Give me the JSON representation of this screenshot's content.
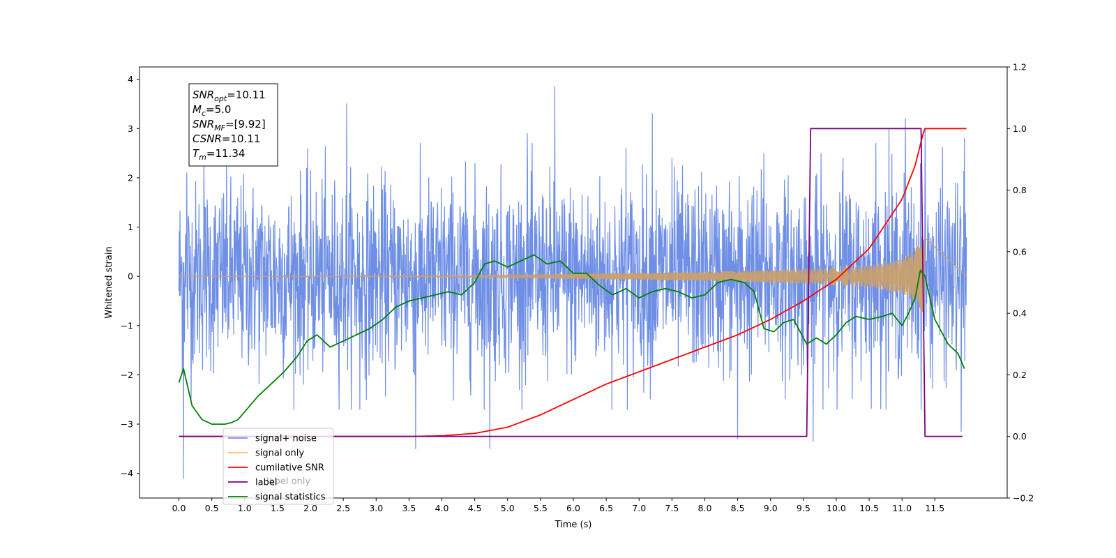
{
  "chart_data": {
    "type": "line",
    "xlabel": "Time (s)",
    "ylabel_left": "Whitened strain",
    "xlim": [
      -0.6,
      12.6
    ],
    "ylim_left": [
      -4.5,
      4.25
    ],
    "ylim_right": [
      -0.2,
      1.2
    ],
    "x_ticks": [
      0.0,
      0.5,
      1.0,
      1.5,
      2.0,
      2.5,
      3.0,
      3.5,
      4.0,
      4.5,
      5.0,
      5.5,
      6.0,
      6.5,
      7.0,
      7.5,
      8.0,
      8.5,
      9.0,
      9.5,
      10.0,
      10.5,
      11.0,
      11.5
    ],
    "x_tick_labels": [
      "0.0",
      "0.5",
      "1.0",
      "1.5",
      "2.0",
      "2.5",
      "3.0",
      "3.5",
      "4.0",
      "4.5",
      "5.0",
      "5.5",
      "6.0",
      "6.5",
      "7.0",
      "7.5",
      "8.0",
      "8.5",
      "9.0",
      "9.5",
      "10.0",
      "10.5",
      "11.0",
      "11.5"
    ],
    "y_left_ticks": [
      -4,
      -3,
      -2,
      -1,
      0,
      1,
      2,
      3,
      4
    ],
    "y_left_tick_labels": [
      "−4",
      "−3",
      "−2",
      "−1",
      "0",
      "1",
      "2",
      "3",
      "4"
    ],
    "y_right_ticks": [
      -0.2,
      0.0,
      0.2,
      0.4,
      0.6,
      0.8,
      1.0,
      1.2
    ],
    "y_right_tick_labels": [
      "−0.2",
      "0.0",
      "0.2",
      "0.4",
      "0.6",
      "0.8",
      "1.0",
      "1.2"
    ],
    "grid": false,
    "legend_position": "lower-left",
    "legend": [
      {
        "label": "signal+ noise",
        "color": "#6f8fe6"
      },
      {
        "label": "signal only",
        "color": "#ffbf66"
      },
      {
        "label": "cumilative SNR",
        "color": "#ff0000"
      },
      {
        "label": "label",
        "color": "#800080"
      },
      {
        "label": "signal statistics",
        "color": "#008000"
      }
    ],
    "legend_hidden_text": "label only",
    "info_box": [
      {
        "base": "SNR",
        "sub": "opt",
        "value": "=10.11"
      },
      {
        "base": "M",
        "sub": "c",
        "value": "=5.0"
      },
      {
        "base": "SNR",
        "sub": "MF",
        "value": "=[9.92]"
      },
      {
        "base": "CSNR",
        "sub": "",
        "value": "=10.11"
      },
      {
        "base": "T",
        "sub": "m",
        "value": "=11.34"
      }
    ],
    "series": [
      {
        "name": "signal+ noise",
        "axis": "left",
        "color": "#6f8fe6",
        "style": "noise",
        "x_range": [
          0.0,
          11.98
        ],
        "band_sd": 0.95,
        "spikes": [
          [
            0.07,
            -4.1
          ],
          [
            0.12,
            2.1
          ],
          [
            0.38,
            2.3
          ],
          [
            2.55,
            3.5
          ],
          [
            2.75,
            -2.7
          ],
          [
            3.6,
            -3.5
          ],
          [
            4.73,
            -3.5
          ],
          [
            5.3,
            2.9
          ],
          [
            5.72,
            3.85
          ],
          [
            6.8,
            2.6
          ],
          [
            7.2,
            3.3
          ],
          [
            7.5,
            2.4
          ],
          [
            8.5,
            -3.3
          ],
          [
            8.9,
            2.5
          ],
          [
            9.65,
            -3.35
          ],
          [
            10.1,
            2.4
          ],
          [
            10.6,
            2.7
          ],
          [
            10.8,
            3.0
          ],
          [
            11.05,
            3.2
          ],
          [
            11.35,
            3.0
          ],
          [
            11.9,
            -3.15
          ],
          [
            11.95,
            2.8
          ]
        ]
      },
      {
        "name": "signal only",
        "axis": "left",
        "color": "#c8a06e",
        "style": "chirp",
        "x_range": [
          0.0,
          11.34
        ],
        "envelope": [
          [
            0.0,
            0.0
          ],
          [
            4.5,
            0.02
          ],
          [
            6.0,
            0.05
          ],
          [
            8.0,
            0.09
          ],
          [
            9.5,
            0.15
          ],
          [
            10.5,
            0.22
          ],
          [
            11.0,
            0.35
          ],
          [
            11.2,
            0.55
          ],
          [
            11.34,
            0.85
          ]
        ]
      },
      {
        "name": "cumilative SNR",
        "axis": "right",
        "color": "#ff0000",
        "x": [
          0.0,
          3.5,
          4.0,
          4.5,
          5.0,
          5.5,
          6.0,
          6.5,
          7.0,
          7.5,
          8.0,
          8.5,
          9.0,
          9.5,
          10.0,
          10.5,
          11.0,
          11.2,
          11.34,
          11.98
        ],
        "y": [
          0.0,
          0.0,
          0.002,
          0.01,
          0.03,
          0.07,
          0.12,
          0.17,
          0.21,
          0.25,
          0.29,
          0.33,
          0.38,
          0.44,
          0.51,
          0.61,
          0.77,
          0.88,
          1.0,
          1.0
        ]
      },
      {
        "name": "label",
        "axis": "right",
        "color": "#800080",
        "x": [
          0.0,
          9.55,
          9.61,
          11.29,
          11.35,
          11.92
        ],
        "y": [
          0.0,
          0.0,
          1.0,
          1.0,
          0.0,
          0.0
        ]
      },
      {
        "name": "signal statistics",
        "axis": "right",
        "color": "#008000",
        "x": [
          0.0,
          0.07,
          0.2,
          0.35,
          0.5,
          0.7,
          0.8,
          0.9,
          1.0,
          1.2,
          1.4,
          1.6,
          1.8,
          1.95,
          2.1,
          2.3,
          2.5,
          2.7,
          2.9,
          3.1,
          3.3,
          3.5,
          3.7,
          3.9,
          4.1,
          4.3,
          4.5,
          4.65,
          4.8,
          5.0,
          5.2,
          5.4,
          5.6,
          5.8,
          6.0,
          6.2,
          6.4,
          6.6,
          6.8,
          7.0,
          7.2,
          7.4,
          7.6,
          7.8,
          8.0,
          8.2,
          8.4,
          8.6,
          8.75,
          8.9,
          9.05,
          9.2,
          9.35,
          9.55,
          9.7,
          9.85,
          10.0,
          10.15,
          10.3,
          10.5,
          10.7,
          10.85,
          11.0,
          11.1,
          11.2,
          11.28,
          11.35,
          11.5,
          11.7,
          11.85,
          11.95
        ],
        "y": [
          0.175,
          0.22,
          0.1,
          0.055,
          0.04,
          0.04,
          0.045,
          0.055,
          0.08,
          0.13,
          0.17,
          0.21,
          0.26,
          0.31,
          0.33,
          0.29,
          0.31,
          0.33,
          0.35,
          0.38,
          0.42,
          0.44,
          0.45,
          0.46,
          0.47,
          0.46,
          0.5,
          0.56,
          0.57,
          0.55,
          0.57,
          0.59,
          0.56,
          0.57,
          0.53,
          0.53,
          0.49,
          0.46,
          0.48,
          0.45,
          0.47,
          0.48,
          0.47,
          0.45,
          0.46,
          0.5,
          0.51,
          0.5,
          0.47,
          0.35,
          0.34,
          0.37,
          0.38,
          0.3,
          0.32,
          0.3,
          0.33,
          0.37,
          0.39,
          0.38,
          0.39,
          0.4,
          0.36,
          0.4,
          0.45,
          0.54,
          0.52,
          0.38,
          0.3,
          0.27,
          0.22
        ]
      }
    ]
  }
}
